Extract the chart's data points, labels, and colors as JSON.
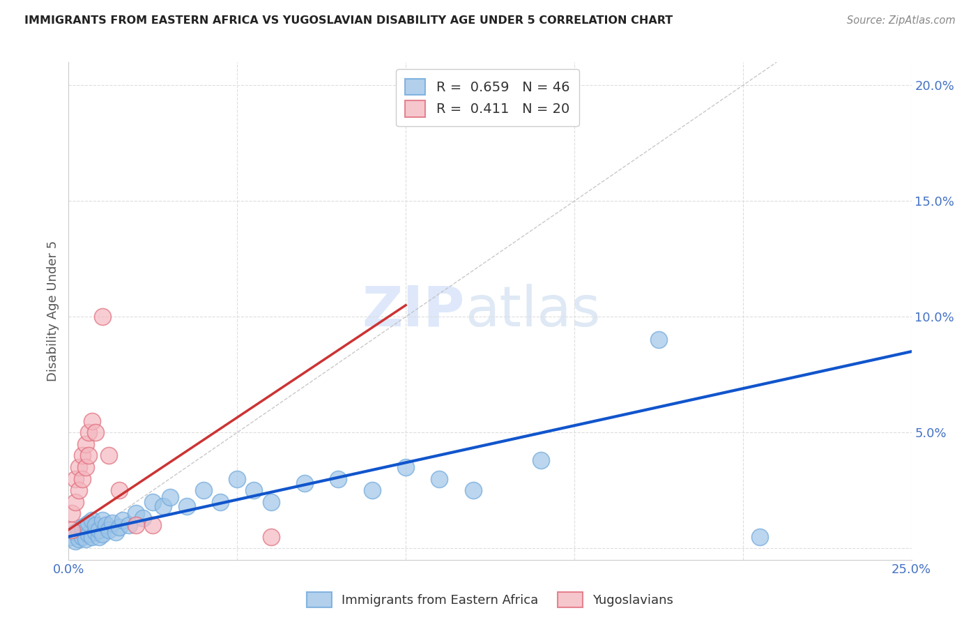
{
  "title": "IMMIGRANTS FROM EASTERN AFRICA VS YUGOSLAVIAN DISABILITY AGE UNDER 5 CORRELATION CHART",
  "source": "Source: ZipAtlas.com",
  "ylabel": "Disability Age Under 5",
  "xlim": [
    0.0,
    0.25
  ],
  "ylim": [
    -0.005,
    0.21
  ],
  "xticks": [
    0.0,
    0.05,
    0.1,
    0.15,
    0.2,
    0.25
  ],
  "xticklabels": [
    "0.0%",
    "",
    "",
    "",
    "",
    "25.0%"
  ],
  "yticks": [
    0.0,
    0.05,
    0.1,
    0.15,
    0.2
  ],
  "yticklabels": [
    "",
    "5.0%",
    "10.0%",
    "15.0%",
    "20.0%"
  ],
  "background_color": "#ffffff",
  "watermark_zip": "ZIP",
  "watermark_atlas": "atlas",
  "legend_blue_r": "0.659",
  "legend_blue_n": "46",
  "legend_pink_r": "0.411",
  "legend_pink_n": "20",
  "blue_color": "#9fc5e8",
  "blue_edge_color": "#6fa8dc",
  "pink_color": "#f4b8c1",
  "pink_edge_color": "#e06c7a",
  "blue_line_color": "#1155cc",
  "pink_line_color": "#cc3333",
  "diagonal_color": "#bbbbbb",
  "blue_scatter_x": [
    0.001,
    0.002,
    0.002,
    0.003,
    0.003,
    0.004,
    0.004,
    0.005,
    0.005,
    0.006,
    0.006,
    0.007,
    0.007,
    0.008,
    0.008,
    0.009,
    0.009,
    0.01,
    0.01,
    0.011,
    0.012,
    0.013,
    0.014,
    0.015,
    0.016,
    0.018,
    0.02,
    0.022,
    0.025,
    0.028,
    0.03,
    0.035,
    0.04,
    0.045,
    0.05,
    0.055,
    0.06,
    0.07,
    0.08,
    0.09,
    0.1,
    0.11,
    0.12,
    0.14,
    0.175,
    0.205
  ],
  "blue_scatter_y": [
    0.005,
    0.003,
    0.007,
    0.004,
    0.008,
    0.005,
    0.009,
    0.004,
    0.01,
    0.006,
    0.011,
    0.005,
    0.012,
    0.007,
    0.01,
    0.005,
    0.008,
    0.006,
    0.012,
    0.01,
    0.008,
    0.011,
    0.007,
    0.009,
    0.012,
    0.01,
    0.015,
    0.013,
    0.02,
    0.018,
    0.022,
    0.018,
    0.025,
    0.02,
    0.03,
    0.025,
    0.02,
    0.028,
    0.03,
    0.025,
    0.035,
    0.03,
    0.025,
    0.038,
    0.09,
    0.005
  ],
  "pink_scatter_x": [
    0.001,
    0.001,
    0.002,
    0.002,
    0.003,
    0.003,
    0.004,
    0.004,
    0.005,
    0.005,
    0.006,
    0.006,
    0.007,
    0.008,
    0.01,
    0.012,
    0.015,
    0.02,
    0.025,
    0.06
  ],
  "pink_scatter_y": [
    0.008,
    0.015,
    0.02,
    0.03,
    0.025,
    0.035,
    0.03,
    0.04,
    0.035,
    0.045,
    0.04,
    0.05,
    0.055,
    0.05,
    0.1,
    0.04,
    0.025,
    0.01,
    0.01,
    0.005
  ],
  "blue_line_x0": 0.0,
  "blue_line_y0": 0.005,
  "blue_line_x1": 0.25,
  "blue_line_y1": 0.085,
  "pink_line_x0": 0.0,
  "pink_line_y0": 0.008,
  "pink_line_x1": 0.1,
  "pink_line_y1": 0.105
}
